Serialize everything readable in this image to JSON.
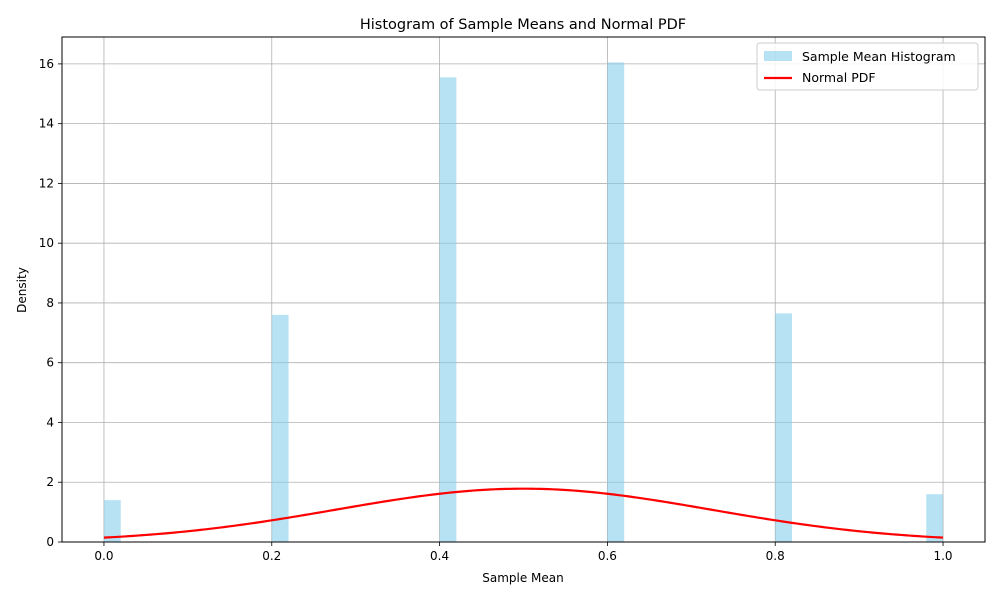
{
  "chart_data": {
    "type": "bar",
    "title": "Histogram of Sample Means and Normal PDF",
    "xlabel": "Sample Mean",
    "ylabel": "Density",
    "xlim": [
      -0.05,
      1.05
    ],
    "ylim": [
      0,
      16.9
    ],
    "xticks": [
      "0.0",
      "0.2",
      "0.4",
      "0.6",
      "0.8",
      "1.0"
    ],
    "yticks": [
      "0",
      "2",
      "4",
      "6",
      "8",
      "10",
      "12",
      "14",
      "16"
    ],
    "grid": true,
    "legend_position": "top-right",
    "series": [
      {
        "name": "Sample Mean Histogram",
        "kind": "histogram",
        "color": "#87ceeb",
        "bin_width": 0.02,
        "bins": [
          {
            "start": 0.0,
            "value": 1.4
          },
          {
            "start": 0.2,
            "value": 7.6
          },
          {
            "start": 0.4,
            "value": 15.55
          },
          {
            "start": 0.6,
            "value": 16.05
          },
          {
            "start": 0.8,
            "value": 7.65
          },
          {
            "start": 0.98,
            "value": 1.6
          }
        ]
      },
      {
        "name": "Normal PDF",
        "kind": "line",
        "color": "#ff0000",
        "mean": 0.5,
        "std": 0.2236,
        "x_range": [
          0.0,
          1.0
        ]
      }
    ]
  }
}
